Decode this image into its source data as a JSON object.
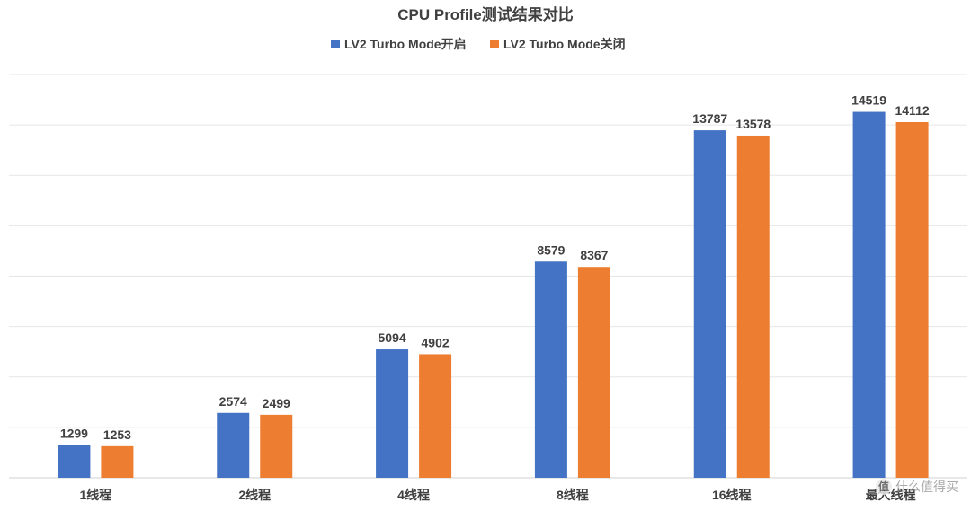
{
  "chart_data": {
    "type": "bar",
    "title": "CPU Profile测试结果对比",
    "xlabel": "",
    "ylabel": "",
    "ylim": [
      0,
      16000
    ],
    "grid": true,
    "legend_position": "top-center",
    "categories": [
      "1线程",
      "2线程",
      "4线程",
      "8线程",
      "16线程",
      "最大线程"
    ],
    "series": [
      {
        "name": "LV2 Turbo Mode开启",
        "color": "#4472C4",
        "values": [
          1299,
          2574,
          5094,
          8579,
          13787,
          14519
        ]
      },
      {
        "name": "LV2 Turbo Mode关闭",
        "color": "#ED7D31",
        "values": [
          1253,
          2499,
          4902,
          8367,
          13578,
          14112
        ]
      }
    ]
  },
  "watermark": {
    "badge": "值",
    "text": "什么值得买"
  }
}
